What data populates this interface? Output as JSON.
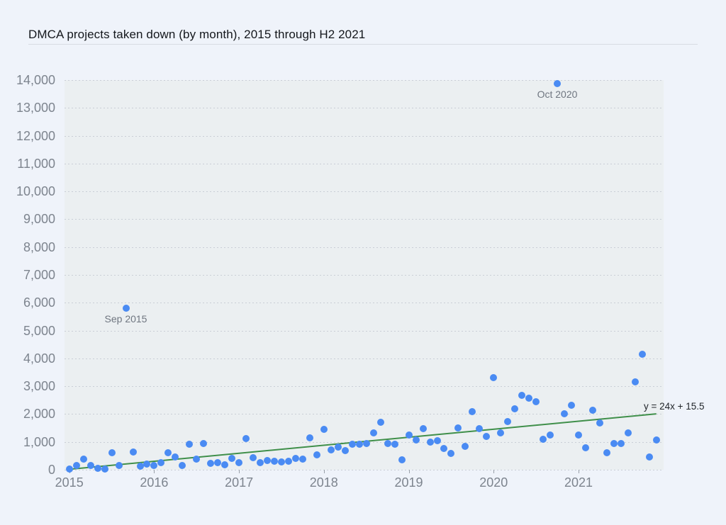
{
  "header": {
    "title": "DMCA projects taken down (by month), 2015 through H2 2021"
  },
  "colors": {
    "page_bg": "#eff3fa",
    "plot_bg": "#ebeff1",
    "grid": "#c9ced6",
    "axis_text": "#7d848e",
    "dot": "#4a8bf3",
    "trend": "#3f8f4a",
    "title_text": "#14171c",
    "annotation_text": "#6f7680",
    "equation_text": "#22262b",
    "divider": "#d8dce2"
  },
  "chart_data": {
    "type": "scatter",
    "title": "DMCA projects taken down (by month), 2015 through H2 2021",
    "xlabel": "",
    "ylabel": "",
    "ylim": [
      0,
      14000
    ],
    "grid": "horizontal-dotted",
    "legend": "none",
    "y_ticks": [
      {
        "value": 0,
        "label": "0"
      },
      {
        "value": 1000,
        "label": "1,000"
      },
      {
        "value": 2000,
        "label": "2,000"
      },
      {
        "value": 3000,
        "label": "3,000"
      },
      {
        "value": 4000,
        "label": "4,000"
      },
      {
        "value": 5000,
        "label": "5,000"
      },
      {
        "value": 6000,
        "label": "6,000"
      },
      {
        "value": 7000,
        "label": "7,000"
      },
      {
        "value": 8000,
        "label": "8,000"
      },
      {
        "value": 9000,
        "label": "9,000"
      },
      {
        "value": 10000,
        "label": "10,000"
      },
      {
        "value": 11000,
        "label": "11,000"
      },
      {
        "value": 12000,
        "label": "12,000"
      },
      {
        "value": 13000,
        "label": "13,000"
      },
      {
        "value": 14000,
        "label": "14,000"
      }
    ],
    "x_ticks": [
      {
        "label": "2015",
        "month_index": 0
      },
      {
        "label": "2016",
        "month_index": 12
      },
      {
        "label": "2017",
        "month_index": 24
      },
      {
        "label": "2018",
        "month_index": 36
      },
      {
        "label": "2019",
        "month_index": 48
      },
      {
        "label": "2020",
        "month_index": 60
      },
      {
        "label": "2021",
        "month_index": 72
      }
    ],
    "points": [
      {
        "label": "Jan 2015",
        "value": 15
      },
      {
        "label": "Feb 2015",
        "value": 150
      },
      {
        "label": "Mar 2015",
        "value": 385
      },
      {
        "label": "Apr 2015",
        "value": 155
      },
      {
        "label": "May 2015",
        "value": 60
      },
      {
        "label": "Jun 2015",
        "value": 25
      },
      {
        "label": "Jul 2015",
        "value": 600
      },
      {
        "label": "Aug 2015",
        "value": 155
      },
      {
        "label": "Sep 2015",
        "value": 5810
      },
      {
        "label": "Oct 2015",
        "value": 630
      },
      {
        "label": "Nov 2015",
        "value": 140
      },
      {
        "label": "Dec 2015",
        "value": 215
      },
      {
        "label": "Jan 2016",
        "value": 150
      },
      {
        "label": "Feb 2016",
        "value": 260
      },
      {
        "label": "Mar 2016",
        "value": 615
      },
      {
        "label": "Apr 2016",
        "value": 465
      },
      {
        "label": "May 2016",
        "value": 165
      },
      {
        "label": "Jun 2016",
        "value": 910
      },
      {
        "label": "Jul 2016",
        "value": 375
      },
      {
        "label": "Aug 2016",
        "value": 935
      },
      {
        "label": "Sep 2016",
        "value": 235
      },
      {
        "label": "Oct 2016",
        "value": 260
      },
      {
        "label": "Nov 2016",
        "value": 175
      },
      {
        "label": "Dec 2016",
        "value": 400
      },
      {
        "label": "Jan 2017",
        "value": 250
      },
      {
        "label": "Feb 2017",
        "value": 1125
      },
      {
        "label": "Mar 2017",
        "value": 425
      },
      {
        "label": "Apr 2017",
        "value": 250
      },
      {
        "label": "May 2017",
        "value": 335
      },
      {
        "label": "Jun 2017",
        "value": 300
      },
      {
        "label": "Jul 2017",
        "value": 275
      },
      {
        "label": "Aug 2017",
        "value": 300
      },
      {
        "label": "Sep 2017",
        "value": 420
      },
      {
        "label": "Oct 2017",
        "value": 385
      },
      {
        "label": "Nov 2017",
        "value": 1150
      },
      {
        "label": "Dec 2017",
        "value": 545
      },
      {
        "label": "Jan 2018",
        "value": 1460
      },
      {
        "label": "Feb 2018",
        "value": 725
      },
      {
        "label": "Mar 2018",
        "value": 810
      },
      {
        "label": "Apr 2018",
        "value": 700
      },
      {
        "label": "May 2018",
        "value": 910
      },
      {
        "label": "Jun 2018",
        "value": 910
      },
      {
        "label": "Jul 2018",
        "value": 955
      },
      {
        "label": "Aug 2018",
        "value": 1335
      },
      {
        "label": "Sep 2018",
        "value": 1715
      },
      {
        "label": "Oct 2018",
        "value": 955
      },
      {
        "label": "Nov 2018",
        "value": 910
      },
      {
        "label": "Dec 2018",
        "value": 360
      },
      {
        "label": "Jan 2019",
        "value": 1250
      },
      {
        "label": "Feb 2019",
        "value": 1065
      },
      {
        "label": "Mar 2019",
        "value": 1480
      },
      {
        "label": "Apr 2019",
        "value": 1000
      },
      {
        "label": "May 2019",
        "value": 1040
      },
      {
        "label": "Jun 2019",
        "value": 760
      },
      {
        "label": "Jul 2019",
        "value": 575
      },
      {
        "label": "Aug 2019",
        "value": 1510
      },
      {
        "label": "Sep 2019",
        "value": 845
      },
      {
        "label": "Oct 2019",
        "value": 2080
      },
      {
        "label": "Nov 2019",
        "value": 1465
      },
      {
        "label": "Dec 2019",
        "value": 1210
      },
      {
        "label": "Jan 2020",
        "value": 3300
      },
      {
        "label": "Feb 2020",
        "value": 1320
      },
      {
        "label": "Mar 2020",
        "value": 1720
      },
      {
        "label": "Apr 2020",
        "value": 2185
      },
      {
        "label": "May 2020",
        "value": 2675
      },
      {
        "label": "Jun 2020",
        "value": 2565
      },
      {
        "label": "Jul 2020",
        "value": 2440
      },
      {
        "label": "Aug 2020",
        "value": 1100
      },
      {
        "label": "Sep 2020",
        "value": 1250
      },
      {
        "label": "Oct 2020",
        "value": 13870
      },
      {
        "label": "Nov 2020",
        "value": 2000
      },
      {
        "label": "Dec 2020",
        "value": 2310
      },
      {
        "label": "Jan 2021",
        "value": 1250
      },
      {
        "label": "Feb 2021",
        "value": 785
      },
      {
        "label": "Mar 2021",
        "value": 2150
      },
      {
        "label": "Apr 2021",
        "value": 1675
      },
      {
        "label": "May 2021",
        "value": 605
      },
      {
        "label": "Jun 2021",
        "value": 935
      },
      {
        "label": "Jul 2021",
        "value": 945
      },
      {
        "label": "Aug 2021",
        "value": 1335
      },
      {
        "label": "Sep 2021",
        "value": 3160
      },
      {
        "label": "Oct 2021",
        "value": 4150
      },
      {
        "label": "Nov 2021",
        "value": 455
      },
      {
        "label": "Dec 2021",
        "value": 1080
      }
    ],
    "annotations": [
      {
        "label": "Sep 2015",
        "month_index": 8
      },
      {
        "label": "Oct 2020",
        "month_index": 69
      }
    ],
    "trendline": {
      "slope": 24,
      "intercept": 15.5,
      "label": "y = 24x + 15.5"
    }
  }
}
